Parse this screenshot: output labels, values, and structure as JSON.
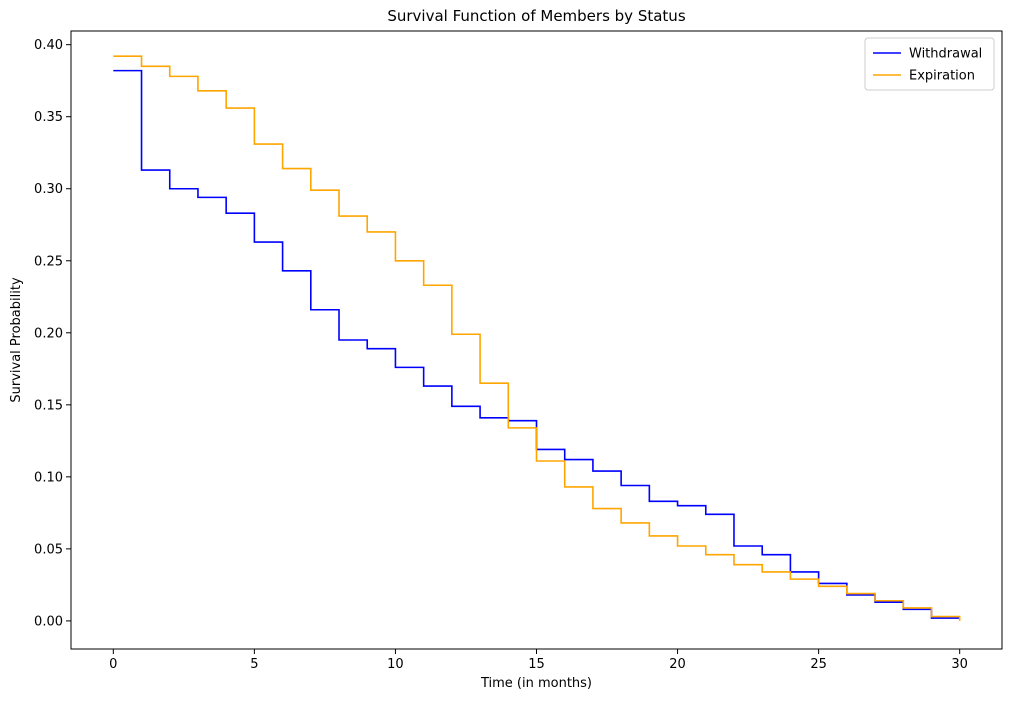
{
  "chart_data": {
    "type": "line",
    "step": "post",
    "title": "Survival Function of Members by Status",
    "xlabel": "Time (in months)",
    "ylabel": "Survival Probability",
    "xlim": [
      -1.5,
      31.5
    ],
    "ylim": [
      -0.0195,
      0.4095
    ],
    "xticks": [
      0,
      5,
      10,
      15,
      20,
      25,
      30
    ],
    "xtick_labels": [
      "0",
      "5",
      "10",
      "15",
      "20",
      "25",
      "30"
    ],
    "yticks": [
      0.0,
      0.05,
      0.1,
      0.15,
      0.2,
      0.25,
      0.3,
      0.35,
      0.4
    ],
    "ytick_labels": [
      "0.00",
      "0.05",
      "0.10",
      "0.15",
      "0.20",
      "0.25",
      "0.30",
      "0.35",
      "0.40"
    ],
    "grid": false,
    "legend_position": "top-right",
    "series": [
      {
        "name": "Withdrawal",
        "color": "#0000ff",
        "x": [
          0,
          1,
          2,
          3,
          4,
          5,
          6,
          7,
          8,
          9,
          10,
          11,
          12,
          13,
          14,
          15,
          16,
          17,
          18,
          19,
          20,
          21,
          22,
          23,
          24,
          25,
          26,
          27,
          28,
          29,
          30
        ],
        "y": [
          0.382,
          0.313,
          0.3,
          0.294,
          0.283,
          0.263,
          0.243,
          0.216,
          0.195,
          0.189,
          0.176,
          0.163,
          0.149,
          0.141,
          0.139,
          0.119,
          0.112,
          0.104,
          0.094,
          0.083,
          0.08,
          0.074,
          0.052,
          0.046,
          0.034,
          0.026,
          0.018,
          0.013,
          0.008,
          0.002,
          0.002
        ]
      },
      {
        "name": "Expiration",
        "color": "#ffa500",
        "x": [
          0,
          1,
          2,
          3,
          4,
          5,
          6,
          7,
          8,
          9,
          10,
          11,
          12,
          13,
          14,
          15,
          16,
          17,
          18,
          19,
          20,
          21,
          22,
          23,
          24,
          25,
          26,
          27,
          28,
          29,
          30
        ],
        "y": [
          0.392,
          0.385,
          0.378,
          0.368,
          0.356,
          0.331,
          0.314,
          0.299,
          0.281,
          0.27,
          0.25,
          0.233,
          0.199,
          0.165,
          0.134,
          0.111,
          0.093,
          0.078,
          0.068,
          0.059,
          0.052,
          0.046,
          0.039,
          0.034,
          0.029,
          0.024,
          0.019,
          0.014,
          0.009,
          0.003,
          0.0
        ]
      }
    ]
  }
}
